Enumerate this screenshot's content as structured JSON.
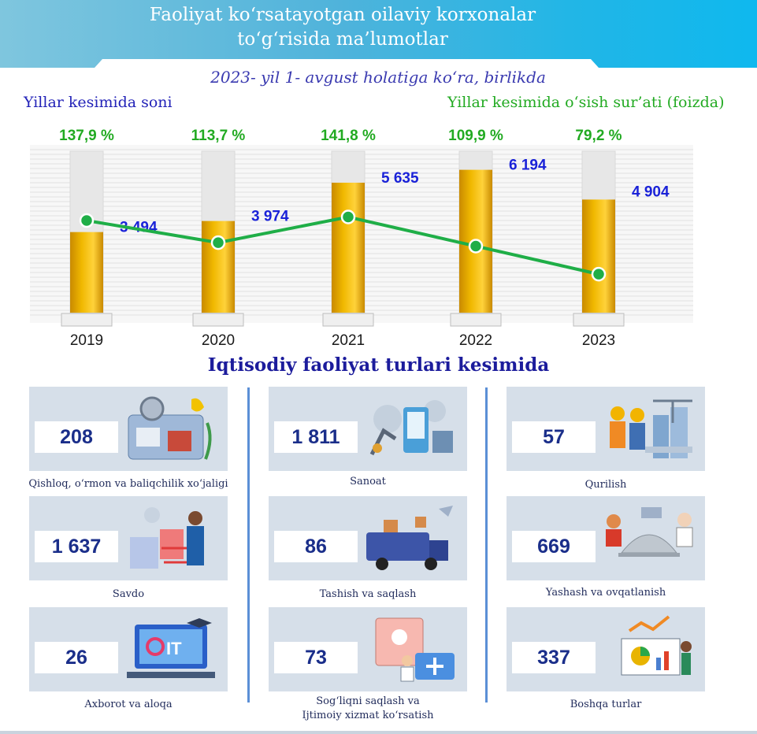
{
  "header": {
    "title_line1": "Faoliyat ko‘rsatayotgan oilaviy korxonalar",
    "title_line2": "to‘g‘risida ma’lumotlar",
    "subtitle": "2023- yil 1- avgust holatiga ko‘ra, birlikda"
  },
  "labels": {
    "left": "Yillar kesimida soni",
    "right": "Yillar kesimida o‘sish sur’ati (foizda)"
  },
  "colors": {
    "bar": "#f0b800",
    "line": "#1fae47",
    "value": "#1a22d8",
    "percent": "#22aa22"
  },
  "chart_data": {
    "type": "bar",
    "categories": [
      "2019",
      "2020",
      "2021",
      "2022",
      "2023"
    ],
    "series": [
      {
        "values": [
          3494,
          3974,
          5635,
          6194,
          4904
        ],
        "labels": [
          "3 494",
          "3 974",
          "5 635",
          "6 194",
          "4 904"
        ]
      },
      {
        "values": [
          137.9,
          113.7,
          141.8,
          109.9,
          79.2
        ],
        "labels": [
          "137,9 %",
          "113,7 %",
          "141,8 %",
          "109,9 %",
          "79,2 %"
        ]
      }
    ],
    "ylim": [
      0,
      7000
    ],
    "xlabel": "",
    "ylabel": ""
  },
  "section": {
    "title": "Iqtisodiy faoliyat turlari kesimida",
    "items": [
      {
        "value": "208",
        "label": "Qishloq, o‘rmon va baliqchilik xo‘jaligi",
        "icon": "agriculture-icon"
      },
      {
        "value": "1 811",
        "label": "Sanoat",
        "icon": "industry-icon"
      },
      {
        "value": "57",
        "label": "Qurilish",
        "icon": "construction-icon"
      },
      {
        "value": "1 637",
        "label": "Savdo",
        "icon": "trade-icon"
      },
      {
        "value": "86",
        "label": "Tashish va saqlash",
        "icon": "transport-icon"
      },
      {
        "value": "669",
        "label": "Yashash va ovqatlanish",
        "icon": "food-service-icon"
      },
      {
        "value": "26",
        "label": "Axborot va aloqa",
        "icon": "it-icon"
      },
      {
        "value": "73",
        "label_line1": "Sog‘liqni saqlash va",
        "label_line2": "Ijtimoiy xizmat ko‘rsatish",
        "icon": "health-icon"
      },
      {
        "value": "337",
        "label": "Boshqa turlar",
        "icon": "analytics-icon"
      }
    ]
  }
}
